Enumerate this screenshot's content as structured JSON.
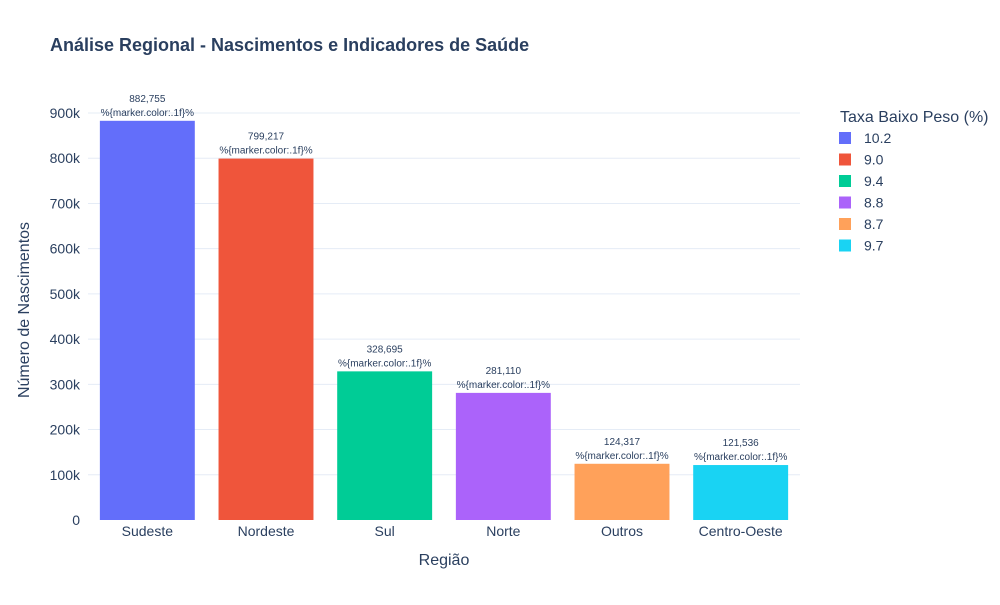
{
  "chart_data": {
    "type": "bar",
    "title": "Análise Regional - Nascimentos e Indicadores de Saúde",
    "xlabel": "Região",
    "ylabel": "Número de Nascimentos",
    "ylim": [
      0,
      900000
    ],
    "yticks": [
      {
        "value": 0,
        "label": "0"
      },
      {
        "value": 100000,
        "label": "100k"
      },
      {
        "value": 200000,
        "label": "200k"
      },
      {
        "value": 300000,
        "label": "300k"
      },
      {
        "value": 400000,
        "label": "400k"
      },
      {
        "value": 500000,
        "label": "500k"
      },
      {
        "value": 600000,
        "label": "600k"
      },
      {
        "value": 700000,
        "label": "700k"
      },
      {
        "value": 800000,
        "label": "800k"
      },
      {
        "value": 900000,
        "label": "900k"
      }
    ],
    "categories": [
      "Sudeste",
      "Nordeste",
      "Sul",
      "Norte",
      "Outros",
      "Centro-Oeste"
    ],
    "values": [
      882755,
      799217,
      328695,
      281110,
      124317,
      121536
    ],
    "value_labels": [
      "882,755",
      "799,217",
      "328,695",
      "281,110",
      "124,317",
      "121,536"
    ],
    "template_label": "%{marker.color:.1f}%",
    "colors": [
      "#636efa",
      "#ef553b",
      "#00cc96",
      "#ab63fa",
      "#ffa15a",
      "#19d3f3"
    ],
    "legend": {
      "title": "Taxa Baixo Peso (%)",
      "placement": "top-right",
      "entries": [
        "10.2",
        "9.0",
        "9.4",
        "8.8",
        "8.7",
        "9.7"
      ]
    },
    "grid": true,
    "gridColor": "#e5ecf6",
    "textColor": "#2a3f5f"
  }
}
